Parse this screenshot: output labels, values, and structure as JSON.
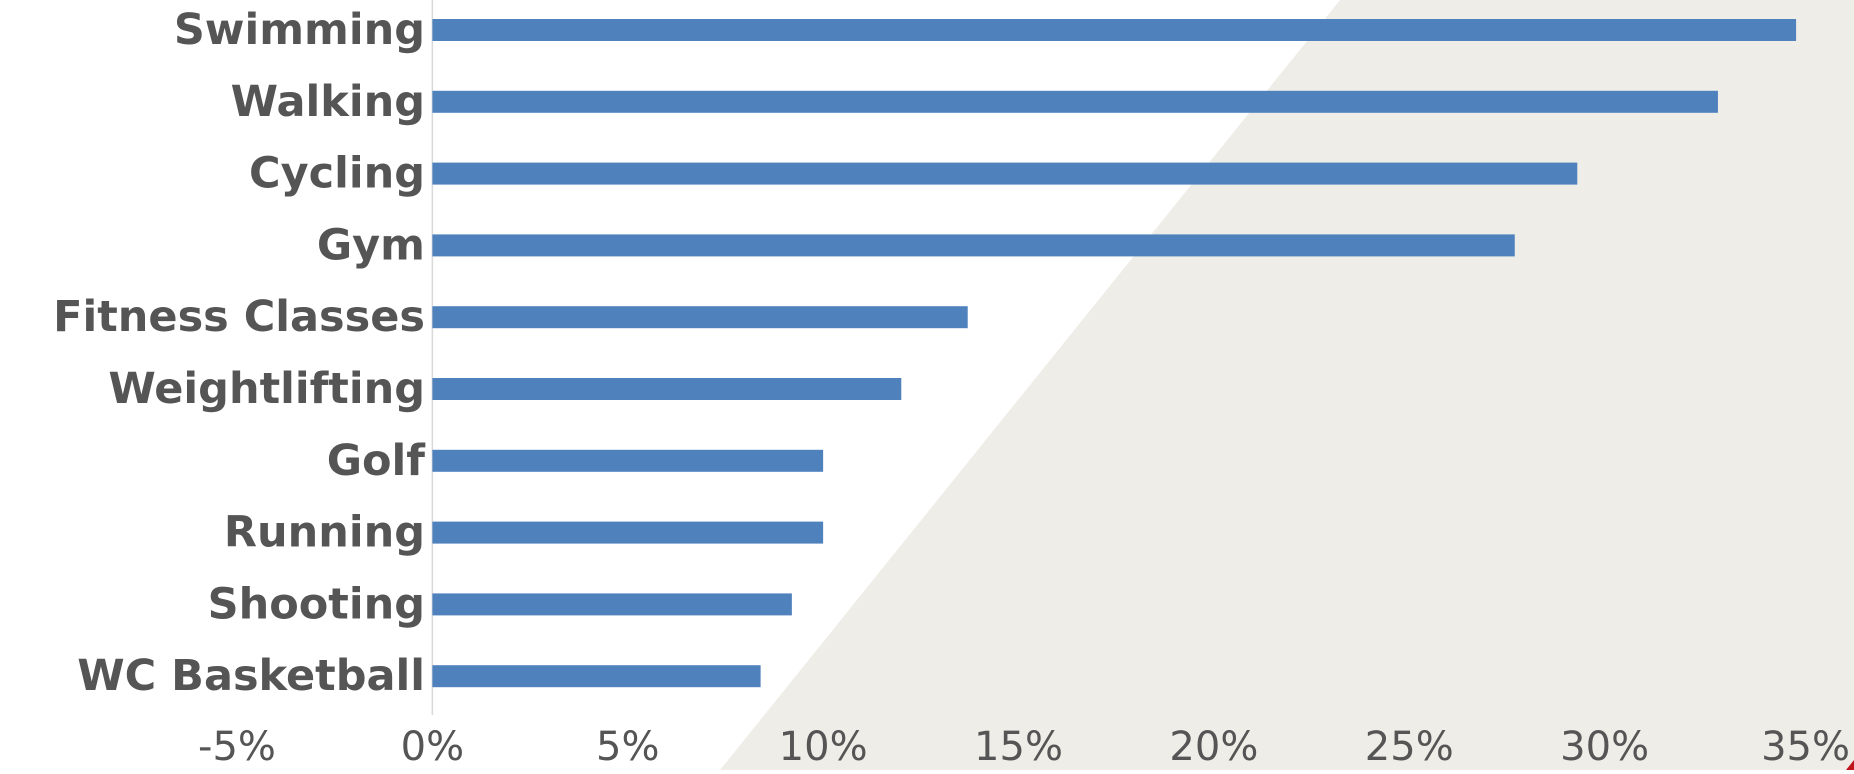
{
  "chart_data": {
    "type": "bar",
    "orientation": "horizontal",
    "categories": [
      "Swimming",
      "Walking",
      "Cycling",
      "Gym",
      "Fitness Classes",
      "Weightlifting",
      "Golf",
      "Running",
      "Shooting",
      "WC Basketball"
    ],
    "values": [
      34.9,
      32.9,
      29.3,
      27.7,
      13.7,
      12.0,
      10.0,
      10.0,
      9.2,
      8.4
    ],
    "xlim": [
      -5,
      35
    ],
    "xticks": [
      "-5%",
      "0%",
      "5%",
      "10%",
      "15%",
      "20%",
      "25%",
      "30%",
      "35%"
    ],
    "x_tick_values": [
      -5,
      0,
      5,
      10,
      15,
      20,
      25,
      30,
      35
    ],
    "title": "",
    "xlabel": "",
    "ylabel": "",
    "grid": false,
    "legend": "none"
  },
  "colors": {
    "bar": "#4f81bd",
    "text": "#555555",
    "background_shape": "#efede7",
    "axis_line": "#d9d9d9",
    "accent": "#c0141c"
  }
}
